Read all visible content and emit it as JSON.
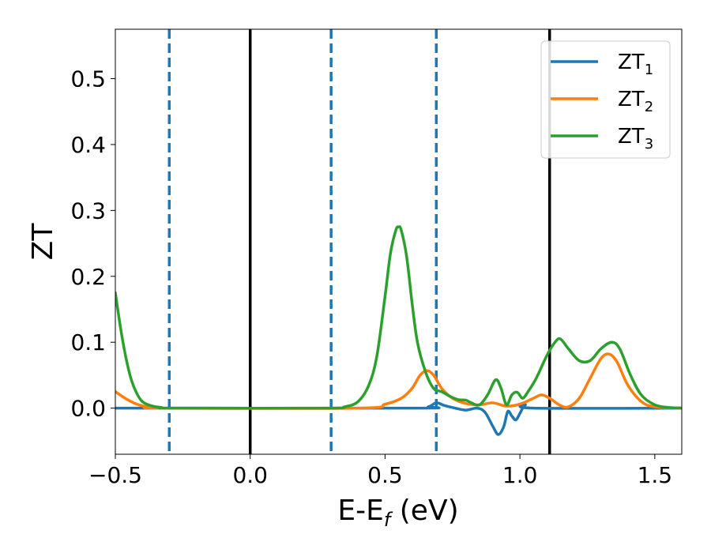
{
  "chart_data": {
    "type": "line",
    "xlabel_main": "E-E",
    "xlabel_sub": "f",
    "xlabel_tail": " (eV)",
    "ylabel": "ZT",
    "xlim": [
      -0.5,
      1.6
    ],
    "ylim": [
      -0.07,
      0.575
    ],
    "xticks": [
      -0.5,
      0.0,
      0.5,
      1.0,
      1.5
    ],
    "xtick_labels": [
      "−0.5",
      "0.0",
      "0.5",
      "1.0",
      "1.5"
    ],
    "yticks": [
      0.0,
      0.1,
      0.2,
      0.3,
      0.4,
      0.5
    ],
    "ytick_labels": [
      "0.0",
      "0.1",
      "0.2",
      "0.3",
      "0.4",
      "0.5"
    ],
    "grid": false,
    "legend_position": "top-right",
    "vlines": [
      {
        "x": 0.0,
        "style": "solid",
        "color": "#000000"
      },
      {
        "x": 1.11,
        "style": "solid",
        "color": "#000000"
      },
      {
        "x": -0.3,
        "style": "dashed",
        "color": "#1f77b4"
      },
      {
        "x": 0.3,
        "style": "dashed",
        "color": "#1f77b4"
      },
      {
        "x": 0.69,
        "style": "dashed",
        "color": "#1f77b4"
      }
    ],
    "series": [
      {
        "name": "ZT",
        "subscript": "1",
        "color": "#1f77b4",
        "points": [
          [
            -0.5,
            0.0
          ],
          [
            0.6,
            0.0
          ],
          [
            0.66,
            0.002
          ],
          [
            0.69,
            0.008
          ],
          [
            0.72,
            0.004
          ],
          [
            0.76,
            0.0
          ],
          [
            0.8,
            -0.003
          ],
          [
            0.84,
            0.0
          ],
          [
            0.87,
            -0.006
          ],
          [
            0.9,
            -0.028
          ],
          [
            0.92,
            -0.04
          ],
          [
            0.94,
            -0.028
          ],
          [
            0.955,
            -0.005
          ],
          [
            0.97,
            -0.012
          ],
          [
            0.985,
            -0.018
          ],
          [
            1.0,
            -0.008
          ],
          [
            1.02,
            0.005
          ],
          [
            1.05,
            0.0
          ],
          [
            1.6,
            0.0
          ]
        ]
      },
      {
        "name": "ZT",
        "subscript": "2",
        "color": "#ff7f0e",
        "points": [
          [
            -0.5,
            0.025
          ],
          [
            -0.46,
            0.014
          ],
          [
            -0.42,
            0.006
          ],
          [
            -0.38,
            0.002
          ],
          [
            -0.32,
            0.0
          ],
          [
            0.4,
            0.0
          ],
          [
            0.5,
            0.006
          ],
          [
            0.56,
            0.015
          ],
          [
            0.6,
            0.03
          ],
          [
            0.63,
            0.05
          ],
          [
            0.655,
            0.057
          ],
          [
            0.68,
            0.05
          ],
          [
            0.71,
            0.03
          ],
          [
            0.75,
            0.015
          ],
          [
            0.8,
            0.007
          ],
          [
            0.85,
            0.005
          ],
          [
            0.9,
            0.008
          ],
          [
            0.95,
            0.003
          ],
          [
            1.0,
            0.006
          ],
          [
            1.05,
            0.015
          ],
          [
            1.08,
            0.02
          ],
          [
            1.11,
            0.015
          ],
          [
            1.15,
            0.004
          ],
          [
            1.18,
            0.002
          ],
          [
            1.22,
            0.015
          ],
          [
            1.26,
            0.045
          ],
          [
            1.3,
            0.075
          ],
          [
            1.33,
            0.082
          ],
          [
            1.36,
            0.07
          ],
          [
            1.4,
            0.035
          ],
          [
            1.45,
            0.01
          ],
          [
            1.5,
            0.002
          ],
          [
            1.6,
            0.0
          ]
        ]
      },
      {
        "name": "ZT",
        "subscript": "3",
        "color": "#2ca02c",
        "points": [
          [
            -0.5,
            0.175
          ],
          [
            -0.48,
            0.12
          ],
          [
            -0.46,
            0.075
          ],
          [
            -0.44,
            0.042
          ],
          [
            -0.42,
            0.022
          ],
          [
            -0.4,
            0.01
          ],
          [
            -0.37,
            0.004
          ],
          [
            -0.33,
            0.001
          ],
          [
            -0.28,
            0.0
          ],
          [
            0.28,
            0.0
          ],
          [
            0.35,
            0.002
          ],
          [
            0.4,
            0.01
          ],
          [
            0.44,
            0.035
          ],
          [
            0.47,
            0.08
          ],
          [
            0.5,
            0.17
          ],
          [
            0.52,
            0.235
          ],
          [
            0.54,
            0.27
          ],
          [
            0.55,
            0.275
          ],
          [
            0.56,
            0.27
          ],
          [
            0.58,
            0.23
          ],
          [
            0.6,
            0.16
          ],
          [
            0.62,
            0.1
          ],
          [
            0.65,
            0.055
          ],
          [
            0.68,
            0.03
          ],
          [
            0.71,
            0.025
          ],
          [
            0.74,
            0.018
          ],
          [
            0.77,
            0.013
          ],
          [
            0.8,
            0.012
          ],
          [
            0.82,
            0.008
          ],
          [
            0.85,
            0.005
          ],
          [
            0.88,
            0.02
          ],
          [
            0.91,
            0.043
          ],
          [
            0.93,
            0.03
          ],
          [
            0.95,
            0.005
          ],
          [
            0.97,
            0.02
          ],
          [
            0.99,
            0.024
          ],
          [
            1.01,
            0.015
          ],
          [
            1.03,
            0.025
          ],
          [
            1.06,
            0.045
          ],
          [
            1.1,
            0.08
          ],
          [
            1.13,
            0.1
          ],
          [
            1.15,
            0.105
          ],
          [
            1.18,
            0.09
          ],
          [
            1.22,
            0.072
          ],
          [
            1.26,
            0.072
          ],
          [
            1.3,
            0.09
          ],
          [
            1.34,
            0.1
          ],
          [
            1.37,
            0.09
          ],
          [
            1.41,
            0.05
          ],
          [
            1.45,
            0.02
          ],
          [
            1.5,
            0.005
          ],
          [
            1.55,
            0.001
          ],
          [
            1.6,
            0.0
          ]
        ]
      }
    ]
  }
}
